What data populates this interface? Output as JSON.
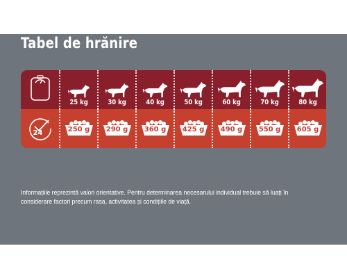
{
  "title": "Tabel de hrănire",
  "header_icons": {
    "weight_row": "scale-icon",
    "ration_row": "daily-24h-icon",
    "ration_row_badge": "24"
  },
  "columns": [
    {
      "weight": "25 kg",
      "portion": "250 g"
    },
    {
      "weight": "30 kg",
      "portion": "290 g"
    },
    {
      "weight": "40 kg",
      "portion": "360 g"
    },
    {
      "weight": "50 kg",
      "portion": "425 g"
    },
    {
      "weight": "60 kg",
      "portion": "490 g"
    },
    {
      "weight": "70 kg",
      "portion": "550 g"
    },
    {
      "weight": "80 kg",
      "portion": "605 g"
    }
  ],
  "note": "Informațiile reprezintă valori orientative. Pentru determinarea necesarului individual trebuie să luați în considerare factori precum rasa, activitatea și condițiile de viață.",
  "colors": {
    "panel": "#6f757c",
    "top_row": "#8a1f2c",
    "bottom_row": "#c5402f",
    "text": "#ffffff"
  }
}
